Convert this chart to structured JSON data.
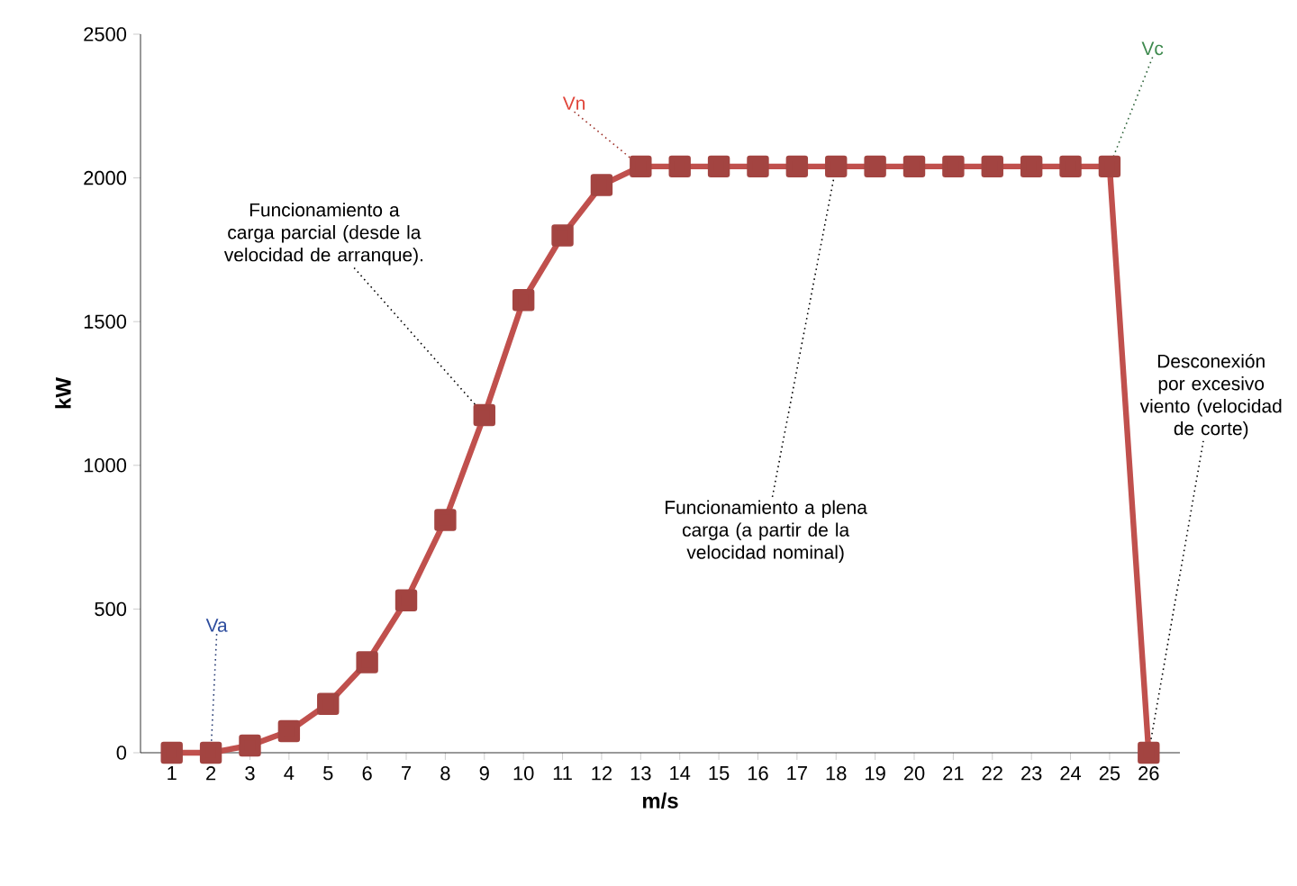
{
  "chart_data": {
    "type": "line",
    "xlabel": "m/s",
    "ylabel": "kW",
    "categories": [
      "1",
      "2",
      "3",
      "4",
      "5",
      "6",
      "7",
      "8",
      "9",
      "10",
      "11",
      "12",
      "13",
      "14",
      "15",
      "16",
      "17",
      "18",
      "19",
      "20",
      "21",
      "22",
      "23",
      "24",
      "25",
      "26"
    ],
    "series": [
      {
        "color": "#c0504d",
        "values": [
          0,
          0,
          25,
          75,
          170,
          315,
          530,
          810,
          1175,
          1575,
          1800,
          1975,
          2040,
          2040,
          2040,
          2040,
          2040,
          2040,
          2040,
          2040,
          2040,
          2040,
          2040,
          2040,
          2040,
          0
        ]
      }
    ],
    "ylim": [
      0,
      2500
    ],
    "yticks": [
      0,
      500,
      1000,
      1500,
      2000,
      2500
    ],
    "marker": "square",
    "line_style": "solid",
    "annotations": [
      {
        "text": "Va",
        "x": "2",
        "y": 0
      },
      {
        "text": "Vn",
        "x": "13",
        "y": 2040
      },
      {
        "text": "Vc",
        "x": "25",
        "y": 2040
      },
      {
        "text": "Funcionamiento a carga parcial (desde la velocidad de arranque).",
        "x": "9",
        "y": 1175
      },
      {
        "text": "Funcionamiento a plena carga (a partir de la velocidad nominal)",
        "x": "18",
        "y": 2040
      },
      {
        "text": "Desconexión por excesivo viento (velocidad de corte)",
        "x": "26",
        "y": 0
      }
    ]
  }
}
